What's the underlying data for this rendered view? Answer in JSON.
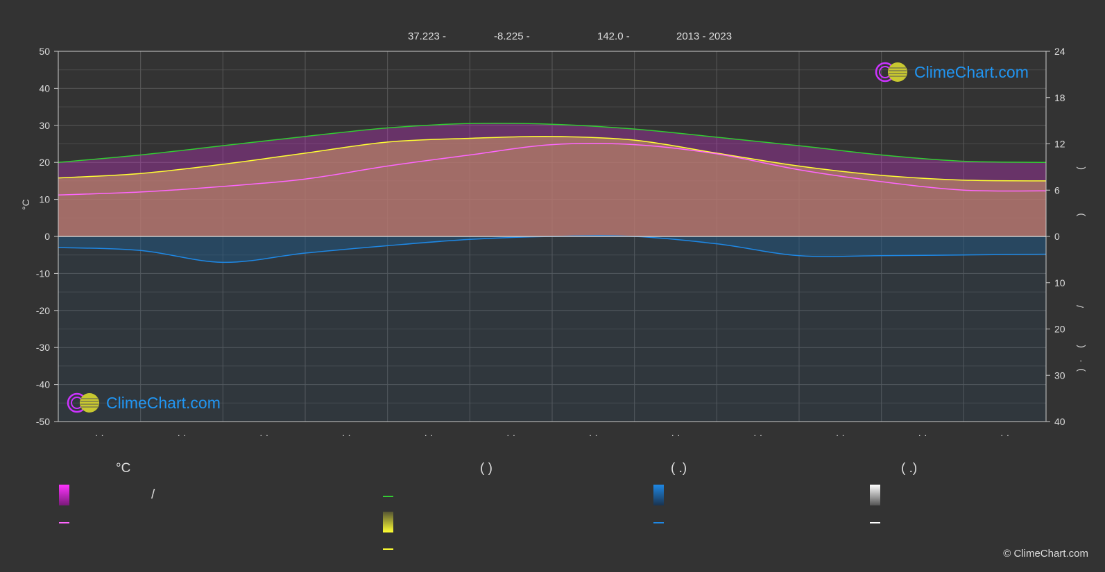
{
  "header": {
    "lat": "37.223 -",
    "lon": "-8.225 -",
    "elev": "142.0 -",
    "years": "2013 - 2023"
  },
  "logo": {
    "text": "ClimeChart.com"
  },
  "copyright": "© ClimeChart.com",
  "chart_data": {
    "type": "area",
    "y_left": {
      "label": "°C",
      "ticks": [
        "50",
        "40",
        "30",
        "20",
        "10",
        "0",
        "-10",
        "-20",
        "-30",
        "-40",
        "-50"
      ],
      "range": [
        -50,
        50
      ]
    },
    "y_right_top": {
      "ticks": [
        "24",
        "18",
        "12",
        "6",
        "0"
      ],
      "range": [
        0,
        24
      ]
    },
    "y_right_bottom": {
      "ticks": [
        "0",
        "10",
        "20",
        "30",
        "40"
      ],
      "range": [
        0,
        40
      ]
    },
    "x_tick_labels": [
      "· ·",
      "· ·",
      "· ·",
      "· ·",
      "· ·",
      "· ·",
      "· ·",
      "· ·",
      "· ·",
      "· ·",
      "· ·",
      "· ·"
    ],
    "right_axis_glyphs": [
      "(",
      ")",
      "/",
      "(",
      "·",
      ")"
    ],
    "x": [
      0,
      1,
      2,
      3,
      4,
      5,
      6,
      7,
      8,
      9,
      10,
      11,
      12
    ],
    "series": [
      {
        "values": [
          20.0,
          22.0,
          24.5,
          27.0,
          29.3,
          30.5,
          30.3,
          29.0,
          26.8,
          24.5,
          22.0,
          20.3,
          20.0
        ]
      },
      {
        "values": [
          15.8,
          17.0,
          19.5,
          22.5,
          25.5,
          26.5,
          27.0,
          26.0,
          22.5,
          19.0,
          16.5,
          15.2,
          15.0
        ]
      },
      {
        "values": [
          11.2,
          12.0,
          13.5,
          15.5,
          19.0,
          22.0,
          24.8,
          24.8,
          22.3,
          18.0,
          14.8,
          12.5,
          12.3
        ]
      },
      {
        "values": [
          -3.0,
          -3.8,
          -7.0,
          -4.5,
          -2.5,
          -0.8,
          0.0,
          0.0,
          -2.0,
          -5.2,
          -5.2,
          -5.0,
          -4.8
        ]
      }
    ],
    "colors": {
      "daylight": "#33cc33",
      "sunshine": "#ffff33",
      "temp_mean": "#ff66ff",
      "precip": "#1e88e5",
      "fill_temp": "#cc33cc",
      "fill_sun": "#aaaa33",
      "fill_rain": "#1e5a8a"
    }
  },
  "legend": {
    "col1_head": "°C",
    "col1_sep": "/",
    "col2_head": "(            )",
    "col3_head": "(    .)",
    "col4_head": "(    .)"
  }
}
